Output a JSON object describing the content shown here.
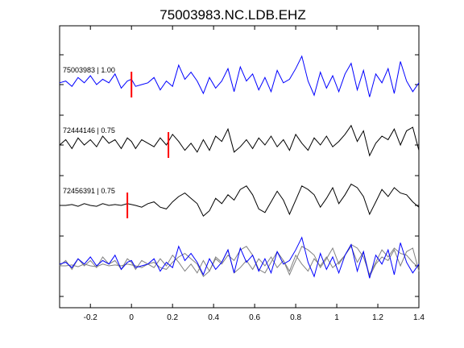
{
  "chart_data": {
    "type": "line",
    "title": "75003983.NC.LDB.EHZ",
    "xlabel": "",
    "ylabel": "",
    "xlim": [
      -0.35,
      1.4
    ],
    "x_ticks": [
      -0.2,
      0,
      0.2,
      0.4,
      0.6,
      0.8,
      1,
      1.2,
      1.4
    ],
    "x_tick_labels": [
      "-0.2",
      "0",
      "0.2",
      "0.4",
      "0.6",
      "0.8",
      "1",
      "1.2",
      "1.4"
    ],
    "grid": false,
    "colors": {
      "primary": "#0000ff",
      "secondary": "#000000",
      "overlay": "#808080",
      "pick": "#ff0000",
      "axes": "#000000"
    },
    "series": [
      {
        "label": "75003983 | 1.00",
        "pick_time": 0.0,
        "color": "#0000ff",
        "x": [
          -0.35,
          -0.32,
          -0.29,
          -0.26,
          -0.23,
          -0.2,
          -0.17,
          -0.14,
          -0.11,
          -0.08,
          -0.05,
          -0.02,
          0.0,
          0.02,
          0.05,
          0.08,
          0.11,
          0.14,
          0.17,
          0.2,
          0.23,
          0.26,
          0.29,
          0.32,
          0.35,
          0.38,
          0.41,
          0.44,
          0.47,
          0.5,
          0.53,
          0.56,
          0.59,
          0.62,
          0.65,
          0.68,
          0.71,
          0.74,
          0.77,
          0.8,
          0.83,
          0.86,
          0.89,
          0.92,
          0.95,
          0.98,
          1.01,
          1.04,
          1.07,
          1.1,
          1.13,
          1.16,
          1.19,
          1.22,
          1.25,
          1.28,
          1.31,
          1.34,
          1.37,
          1.4
        ],
        "values": [
          0.1,
          0.2,
          -0.1,
          0.4,
          0.1,
          0.5,
          0.0,
          0.3,
          0.1,
          0.6,
          -0.2,
          0.2,
          0.3,
          -0.1,
          0.0,
          0.1,
          0.4,
          -0.3,
          0.2,
          -0.1,
          1.1,
          0.3,
          0.7,
          0.2,
          -0.5,
          0.4,
          -0.2,
          0.2,
          0.9,
          -0.4,
          1.0,
          0.2,
          0.6,
          -0.3,
          0.4,
          -0.4,
          0.8,
          0.1,
          0.3,
          0.9,
          1.6,
          0.2,
          -0.6,
          0.7,
          -0.2,
          0.5,
          -0.4,
          0.6,
          1.2,
          -0.3,
          0.8,
          -0.7,
          0.6,
          0.1,
          0.9,
          -0.5,
          1.3,
          0.2,
          -0.4,
          0.1
        ]
      },
      {
        "label": "72444146 | 0.75",
        "pick_time": 0.18,
        "color": "#000000",
        "x": [
          -0.35,
          -0.32,
          -0.29,
          -0.26,
          -0.23,
          -0.2,
          -0.17,
          -0.14,
          -0.11,
          -0.08,
          -0.05,
          -0.02,
          0.0,
          0.02,
          0.05,
          0.08,
          0.11,
          0.14,
          0.17,
          0.2,
          0.23,
          0.26,
          0.29,
          0.32,
          0.35,
          0.38,
          0.41,
          0.44,
          0.47,
          0.5,
          0.53,
          0.56,
          0.59,
          0.62,
          0.65,
          0.68,
          0.71,
          0.74,
          0.77,
          0.8,
          0.83,
          0.86,
          0.89,
          0.92,
          0.95,
          0.98,
          1.01,
          1.04,
          1.07,
          1.1,
          1.13,
          1.16,
          1.19,
          1.22,
          1.25,
          1.28,
          1.31,
          1.34,
          1.37,
          1.4
        ],
        "values": [
          0.0,
          0.3,
          -0.2,
          0.4,
          0.0,
          0.3,
          -0.1,
          0.5,
          0.1,
          0.3,
          -0.2,
          0.4,
          0.2,
          -0.2,
          0.3,
          0.1,
          -0.1,
          0.4,
          0.0,
          0.6,
          0.2,
          -0.3,
          0.1,
          -0.4,
          0.3,
          -0.3,
          0.5,
          0.2,
          0.9,
          -0.4,
          -0.1,
          0.3,
          -0.2,
          0.4,
          0.0,
          0.5,
          -0.1,
          0.3,
          -0.3,
          0.6,
          0.1,
          -0.3,
          0.4,
          0.0,
          0.5,
          -0.1,
          0.2,
          0.6,
          1.1,
          0.2,
          0.8,
          -0.6,
          0.1,
          0.5,
          0.3,
          0.9,
          0.0,
          0.8,
          1.0,
          -0.3
        ]
      },
      {
        "label": "72456391 | 0.75",
        "pick_time": -0.02,
        "color": "#000000",
        "x": [
          -0.35,
          -0.32,
          -0.29,
          -0.26,
          -0.23,
          -0.2,
          -0.17,
          -0.14,
          -0.11,
          -0.08,
          -0.05,
          -0.02,
          0.0,
          0.02,
          0.05,
          0.08,
          0.11,
          0.14,
          0.17,
          0.2,
          0.23,
          0.26,
          0.29,
          0.32,
          0.35,
          0.38,
          0.41,
          0.44,
          0.47,
          0.5,
          0.53,
          0.56,
          0.59,
          0.62,
          0.65,
          0.68,
          0.71,
          0.74,
          0.77,
          0.8,
          0.83,
          0.86,
          0.89,
          0.92,
          0.95,
          0.98,
          1.01,
          1.04,
          1.07,
          1.1,
          1.13,
          1.16,
          1.19,
          1.22,
          1.25,
          1.28,
          1.31,
          1.34,
          1.37,
          1.4
        ],
        "values": [
          0.0,
          0.0,
          0.05,
          -0.05,
          0.1,
          0.0,
          -0.05,
          0.1,
          0.0,
          0.05,
          0.0,
          0.1,
          0.05,
          0.0,
          -0.1,
          0.1,
          0.2,
          -0.1,
          -0.2,
          0.2,
          0.5,
          0.7,
          0.4,
          0.1,
          -0.6,
          -0.3,
          0.4,
          0.1,
          0.6,
          0.3,
          0.9,
          1.1,
          0.6,
          -0.2,
          -0.4,
          0.2,
          0.8,
          0.3,
          -0.5,
          0.3,
          1.1,
          0.9,
          0.6,
          -0.1,
          0.4,
          1.0,
          0.1,
          0.6,
          1.2,
          1.0,
          0.5,
          -0.5,
          0.2,
          0.9,
          0.5,
          1.0,
          0.7,
          0.6,
          0.2,
          -0.1
        ]
      }
    ]
  }
}
